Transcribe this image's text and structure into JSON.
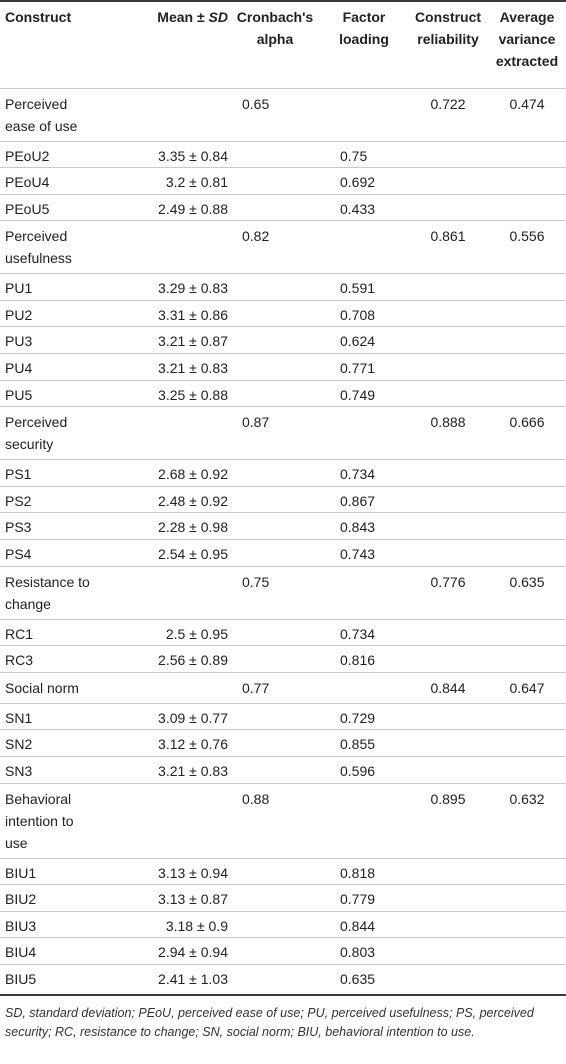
{
  "header": {
    "construct": "Construct",
    "mean_prefix": "Mean ±",
    "mean_sd": "SD",
    "alpha_line1": "Cronbach's",
    "alpha_line2": "alpha",
    "loading_line1": "Factor",
    "loading_line2": "loading",
    "cr_line1": "Construct",
    "cr_line2": "reliability",
    "ave_line1": "Average",
    "ave_line2": "variance",
    "ave_line3": "extracted"
  },
  "groups": [
    {
      "name_lines": [
        "Perceived",
        "ease of use"
      ],
      "alpha": "0.65",
      "cr": "0.722",
      "ave": "0.474",
      "items": [
        {
          "code": "PEoU2",
          "mean": "3.35 ± 0.84",
          "loading": "0.75"
        },
        {
          "code": "PEoU4",
          "mean": "3.2 ± 0.81",
          "loading": "0.692"
        },
        {
          "code": "PEoU5",
          "mean": "2.49 ± 0.88",
          "loading": "0.433"
        }
      ]
    },
    {
      "name_lines": [
        "Perceived",
        "usefulness"
      ],
      "alpha": "0.82",
      "cr": "0.861",
      "ave": "0.556",
      "items": [
        {
          "code": "PU1",
          "mean": "3.29 ± 0.83",
          "loading": "0.591"
        },
        {
          "code": "PU2",
          "mean": "3.31 ± 0.86",
          "loading": "0.708"
        },
        {
          "code": "PU3",
          "mean": "3.21 ± 0.87",
          "loading": "0.624"
        },
        {
          "code": "PU4",
          "mean": "3.21 ± 0.83",
          "loading": "0.771"
        },
        {
          "code": "PU5",
          "mean": "3.25 ± 0.88",
          "loading": "0.749"
        }
      ]
    },
    {
      "name_lines": [
        "Perceived",
        "security"
      ],
      "alpha": "0.87",
      "cr": "0.888",
      "ave": "0.666",
      "items": [
        {
          "code": "PS1",
          "mean": "2.68 ± 0.92",
          "loading": "0.734"
        },
        {
          "code": "PS2",
          "mean": "2.48 ± 0.92",
          "loading": "0.867"
        },
        {
          "code": "PS3",
          "mean": "2.28 ± 0.98",
          "loading": "0.843"
        },
        {
          "code": "PS4",
          "mean": "2.54 ± 0.95",
          "loading": "0.743"
        }
      ]
    },
    {
      "name_lines": [
        "Resistance to",
        "change"
      ],
      "alpha": "0.75",
      "cr": "0.776",
      "ave": "0.635",
      "items": [
        {
          "code": "RC1",
          "mean": "2.5 ± 0.95",
          "loading": "0.734"
        },
        {
          "code": "RC3",
          "mean": "2.56 ± 0.89",
          "loading": "0.816"
        }
      ]
    },
    {
      "name_lines": [
        "Social norm"
      ],
      "alpha": "0.77",
      "cr": "0.844",
      "ave": "0.647",
      "items": [
        {
          "code": "SN1",
          "mean": "3.09 ± 0.77",
          "loading": "0.729"
        },
        {
          "code": "SN2",
          "mean": "3.12 ± 0.76",
          "loading": "0.855"
        },
        {
          "code": "SN3",
          "mean": "3.21 ± 0.83",
          "loading": "0.596"
        }
      ]
    },
    {
      "name_lines": [
        "Behavioral",
        "intention to",
        "use"
      ],
      "alpha": "0.88",
      "cr": "0.895",
      "ave": "0.632",
      "items": [
        {
          "code": "BIU1",
          "mean": "3.13 ± 0.94",
          "loading": "0.818"
        },
        {
          "code": "BIU2",
          "mean": "3.13 ± 0.87",
          "loading": "0.779"
        },
        {
          "code": "BIU3",
          "mean": "3.18 ± 0.9",
          "loading": "0.844"
        },
        {
          "code": "BIU4",
          "mean": "2.94 ± 0.94",
          "loading": "0.803"
        },
        {
          "code": "BIU5",
          "mean": "2.41 ± 1.03",
          "loading": "0.635"
        }
      ]
    }
  ],
  "footnote": "SD, standard deviation; PEoU, perceived ease of use; PU, perceived usefulness; PS, perceived security; RC, resistance to change; SN, social norm; BIU, behavioral intention to use."
}
